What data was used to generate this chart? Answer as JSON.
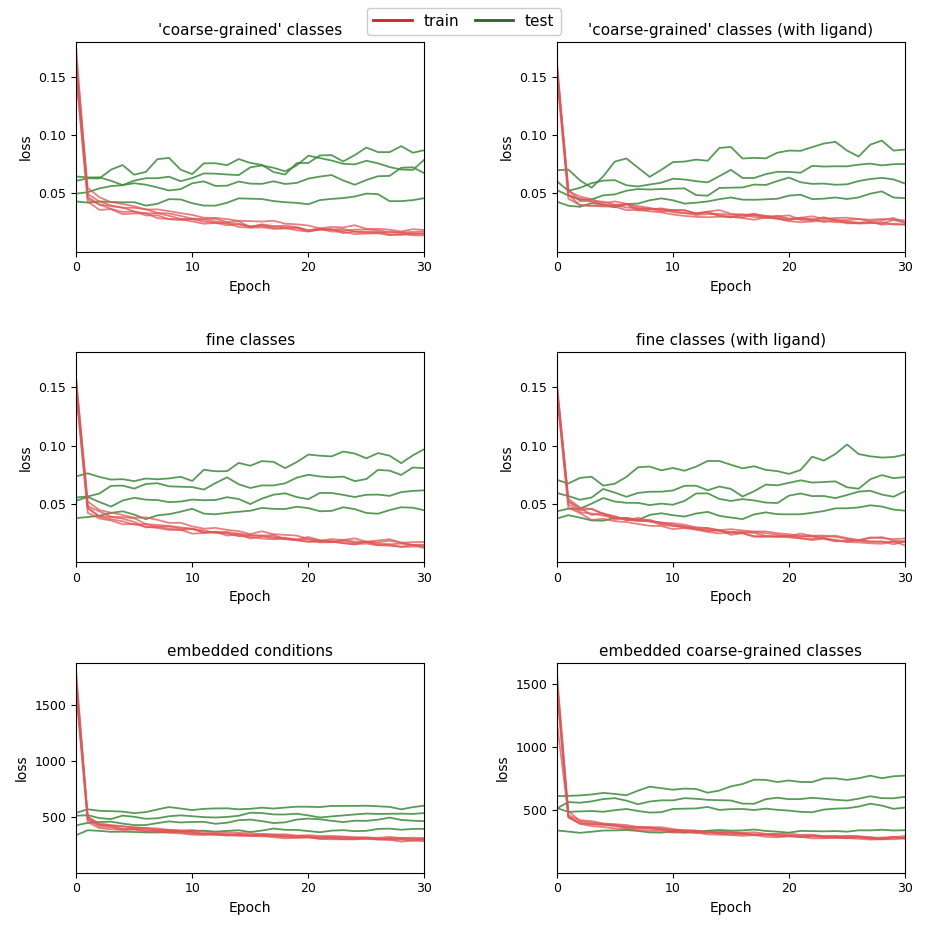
{
  "titles": [
    "'coarse-grained' classes",
    "'coarse-grained' classes (with ligand)",
    "fine classes",
    "fine classes (with ligand)",
    "embedded conditions",
    "embedded coarse-grained classes"
  ],
  "xlabel": "Epoch",
  "ylabel": "loss",
  "train_color": "#e05555",
  "test_color": "#3a8a3a",
  "n_epochs": 30,
  "background_color": "#ffffff",
  "legend_train_color": "#cc2222",
  "legend_test_color": "#226622",
  "small_ylim": [
    0,
    0.18
  ],
  "large_ylim_cond": [
    0,
    1850
  ],
  "large_ylim_coarse": [
    0,
    1700
  ]
}
